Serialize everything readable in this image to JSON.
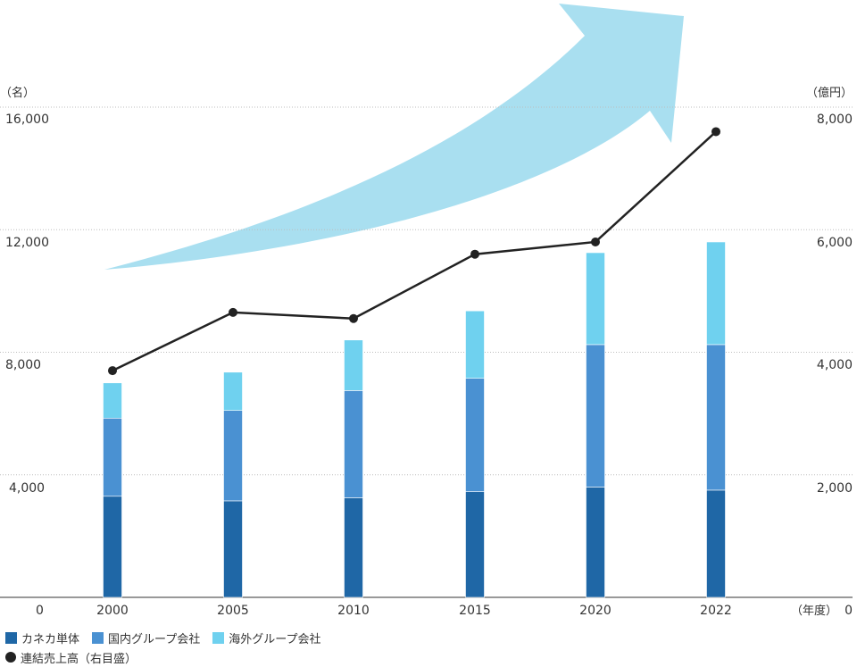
{
  "chart_data": {
    "type": "bar",
    "stacked": true,
    "x": [
      "2000",
      "2005",
      "2010",
      "2015",
      "2020",
      "2022"
    ],
    "series": [
      {
        "name": "カネカ単体",
        "values": [
          3300,
          3150,
          3250,
          3450,
          3600,
          3500
        ],
        "color": "#1f67a6"
      },
      {
        "name": "国内グループ会社",
        "values": [
          2550,
          2950,
          3500,
          3700,
          4650,
          4750
        ],
        "color": "#4a91d2"
      },
      {
        "name": "海外グループ会社",
        "values": [
          1150,
          1250,
          1650,
          2200,
          3000,
          3350
        ],
        "color": "#6fd1ef"
      }
    ],
    "line_series": {
      "name": "連結売上高（右目盛）",
      "values": [
        3700,
        4650,
        4550,
        5600,
        5800,
        7600
      ],
      "color": "#222222"
    },
    "y_left": {
      "unit": "（名）",
      "ticks": [
        "16,000",
        "12,000",
        "8,000",
        "4,000",
        "0"
      ],
      "range": [
        0,
        16000
      ]
    },
    "y_right": {
      "unit": "（億円）",
      "ticks": [
        "8,000",
        "6,000",
        "4,000",
        "2,000",
        "0"
      ],
      "range": [
        0,
        8000
      ]
    },
    "x_unit": "（年度）",
    "legend_placement": "bottom-left",
    "grid": "dotted-horizontal",
    "arrow_color": "#a9dff0"
  }
}
